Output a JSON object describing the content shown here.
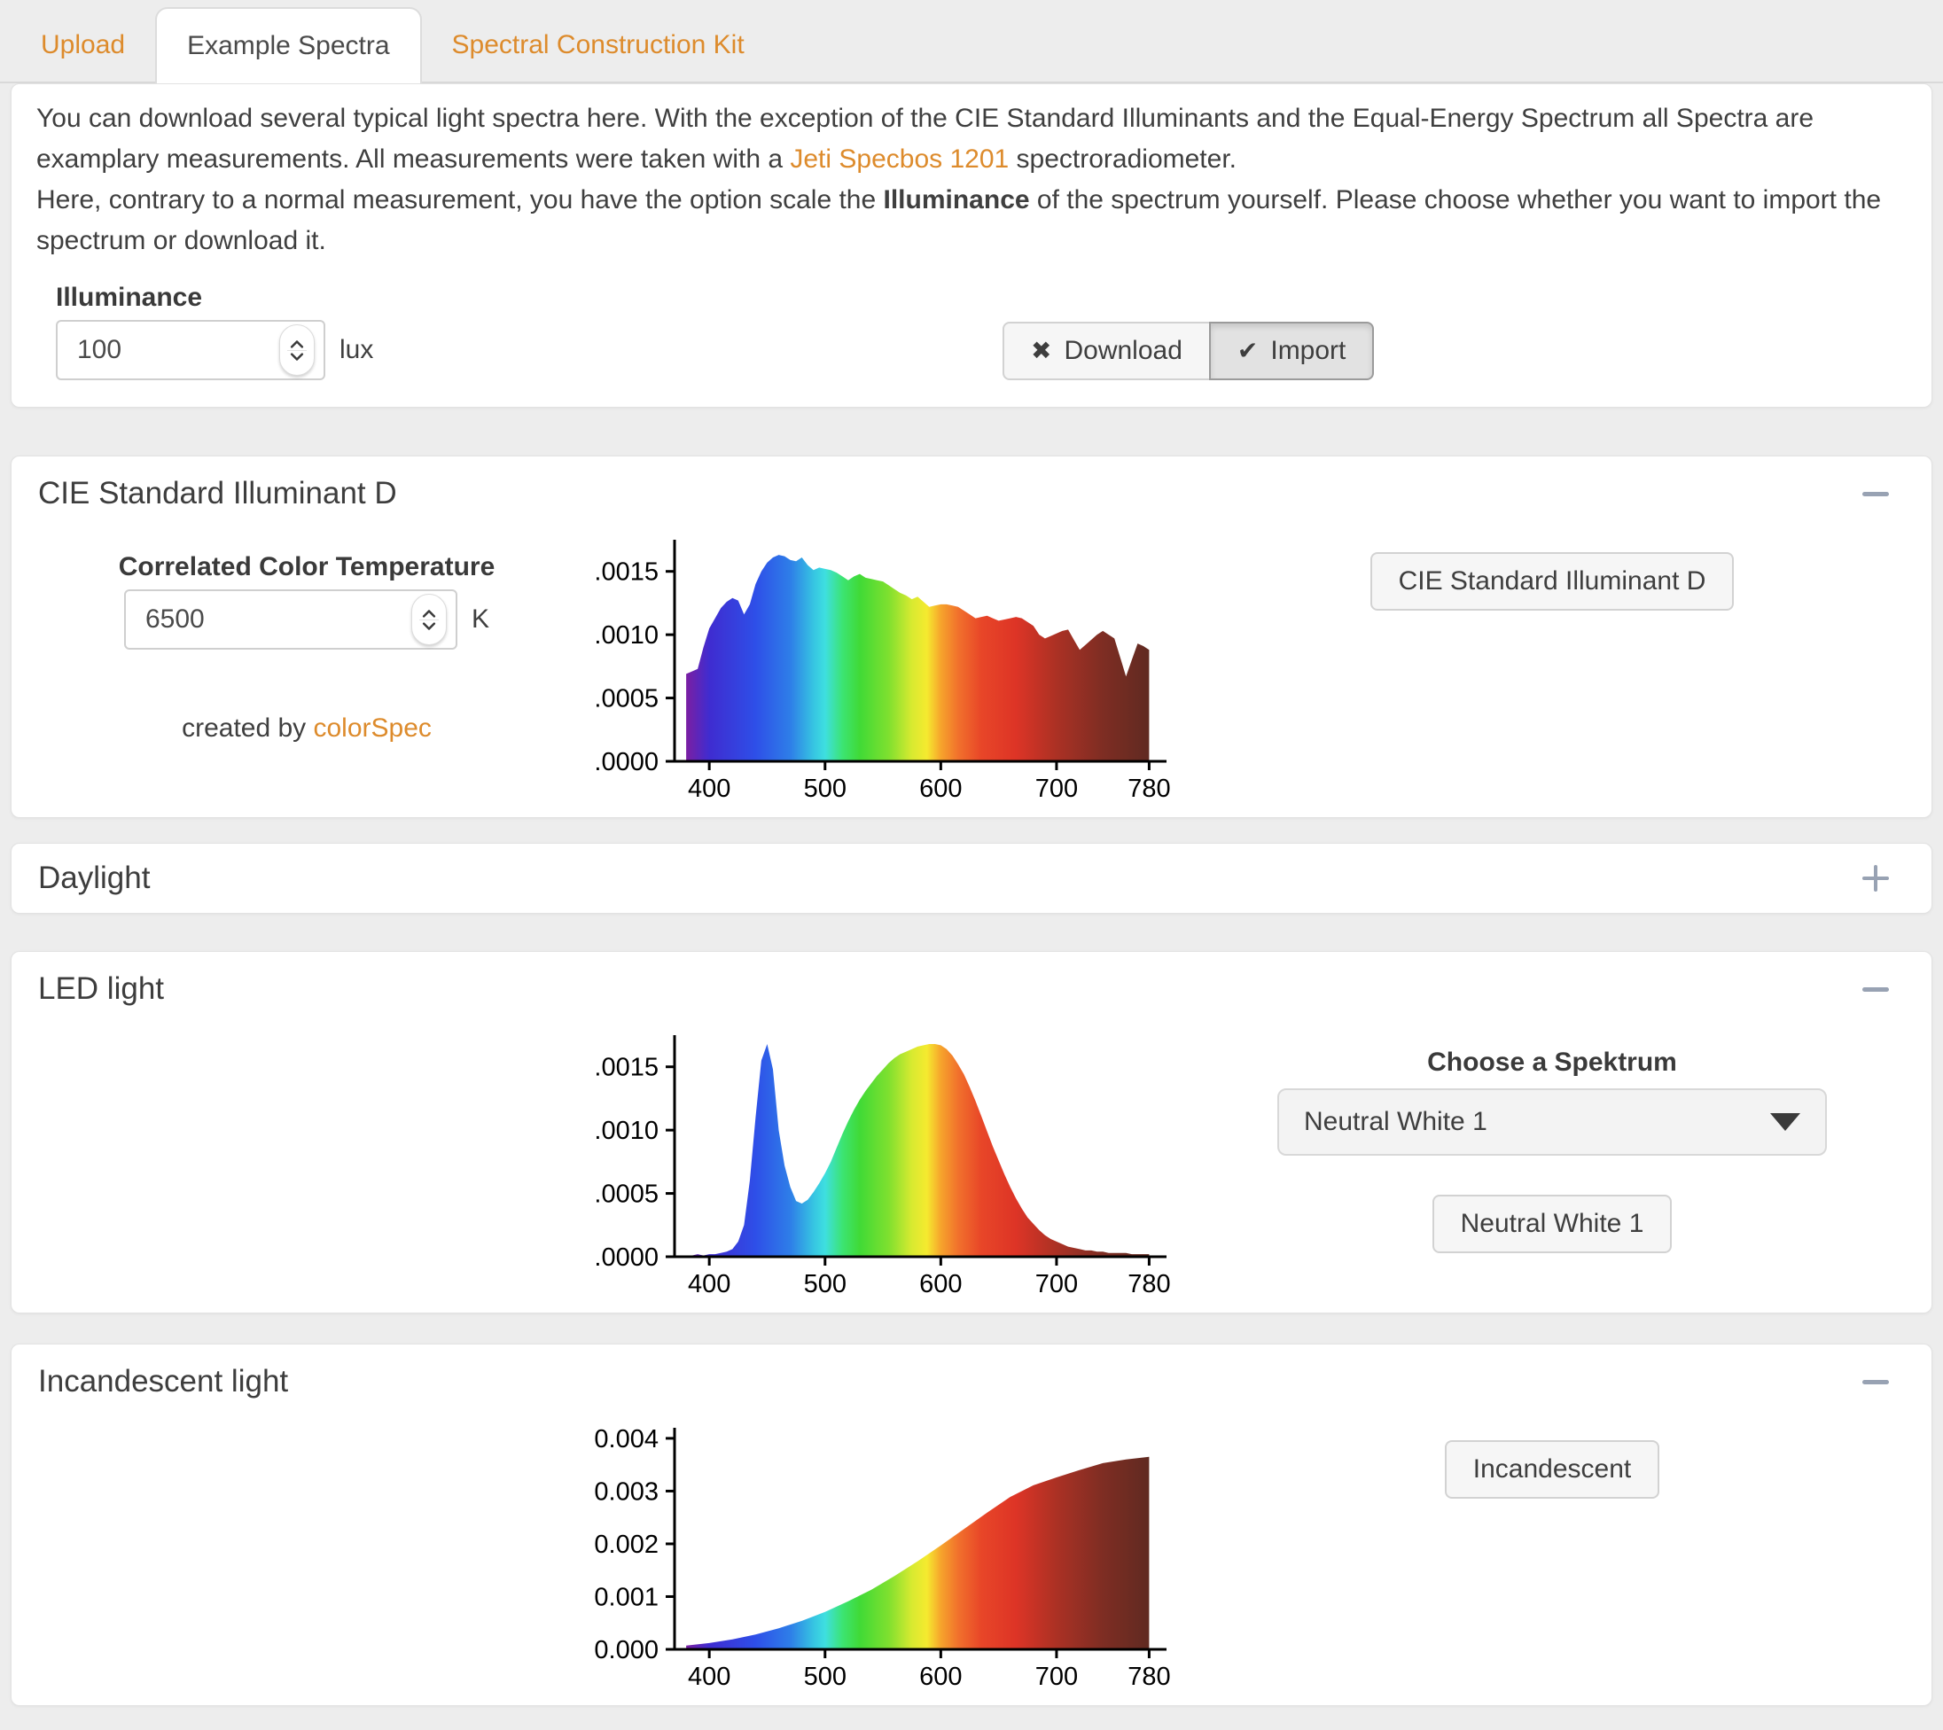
{
  "tabs": [
    {
      "label": "Upload",
      "active": false
    },
    {
      "label": "Example Spectra",
      "active": true
    },
    {
      "label": "Spectral Construction Kit",
      "active": false
    }
  ],
  "intro": {
    "p1_before": "You can download several typical light spectra here. With the exception of the CIE Standard Illuminants and the Equal-Energy Spectrum all Spectra are examplary measurements. All measurements were taken with a ",
    "p1_link": "Jeti Specbos 1201",
    "p1_after": " spectroradiometer.",
    "p2_before": "Here, contrary to a normal measurement, you have the option scale the ",
    "p2_bold": "Illuminance",
    "p2_after": " of the spectrum yourself. Please choose whether you want to import the spectrum or download it."
  },
  "illuminance": {
    "label": "Illuminance",
    "value": "100",
    "unit": "lux"
  },
  "actions": {
    "download_label": "Download",
    "download_icon": "✖",
    "import_label": "Import",
    "import_icon": "✔"
  },
  "panels": {
    "cie": {
      "title": "CIE Standard Illuminant D",
      "cct_label": "Correlated Color Temperature",
      "cct_value": "6500",
      "cct_unit": "K",
      "credit_before": "created by ",
      "credit_link": "colorSpec",
      "button_label": "CIE Standard Illuminant D"
    },
    "daylight": {
      "title": "Daylight"
    },
    "led": {
      "title": "LED light",
      "choose_label": "Choose a Spektrum",
      "select_value": "Neutral White 1",
      "button_label": "Neutral White 1"
    },
    "incandescent": {
      "title": "Incandescent light",
      "button_label": "Incandescent"
    }
  },
  "colors": {
    "accent_orange": "#dd8b2c",
    "page_bg": "#ededed",
    "panel_bg": "#ffffff",
    "icon_gray": "#98a2b3",
    "axis_black": "#000000",
    "spectral_stops": [
      {
        "wl": 380,
        "color": "#7b1fa2"
      },
      {
        "wl": 400,
        "color": "#3f2cd0"
      },
      {
        "wl": 440,
        "color": "#2e4fe8"
      },
      {
        "wl": 470,
        "color": "#2e7ee8"
      },
      {
        "wl": 490,
        "color": "#36c4e2"
      },
      {
        "wl": 500,
        "color": "#3edfe0"
      },
      {
        "wl": 515,
        "color": "#3ce473"
      },
      {
        "wl": 530,
        "color": "#40da36"
      },
      {
        "wl": 555,
        "color": "#7fe02f"
      },
      {
        "wl": 575,
        "color": "#d8ea30"
      },
      {
        "wl": 588,
        "color": "#f5ea2f"
      },
      {
        "wl": 600,
        "color": "#f6a42c"
      },
      {
        "wl": 615,
        "color": "#f1712c"
      },
      {
        "wl": 635,
        "color": "#e84628"
      },
      {
        "wl": 665,
        "color": "#dd3426"
      },
      {
        "wl": 700,
        "color": "#ab3124"
      },
      {
        "wl": 740,
        "color": "#7e2d23"
      },
      {
        "wl": 780,
        "color": "#602a21"
      }
    ]
  },
  "chart_data": [
    {
      "type": "area",
      "name": "CIE Standard Illuminant D spectrum",
      "xlabel": "",
      "ylabel": "",
      "xlim": [
        370,
        795
      ],
      "ylim": [
        0,
        0.00175
      ],
      "x_ticks": [
        400,
        500,
        600,
        700,
        780
      ],
      "x_tick_labels": [
        "400",
        "500",
        "600",
        "700",
        "780"
      ],
      "y_ticks": [
        0,
        0.0005,
        0.001,
        0.0015
      ],
      "y_tick_labels": [
        "0.0000",
        "0.0005",
        "0.0010",
        "0.0015"
      ],
      "x": [
        380,
        385,
        390,
        395,
        400,
        405,
        410,
        415,
        420,
        425,
        430,
        435,
        440,
        445,
        450,
        455,
        460,
        465,
        470,
        475,
        480,
        485,
        490,
        495,
        500,
        505,
        510,
        515,
        520,
        525,
        530,
        535,
        540,
        545,
        550,
        555,
        560,
        565,
        570,
        575,
        580,
        585,
        590,
        595,
        600,
        605,
        610,
        615,
        620,
        625,
        630,
        635,
        640,
        645,
        650,
        655,
        660,
        665,
        670,
        675,
        680,
        685,
        690,
        695,
        700,
        705,
        710,
        715,
        720,
        725,
        730,
        735,
        740,
        745,
        750,
        755,
        760,
        765,
        770,
        775,
        780
      ],
      "values": [
        0.00069,
        0.00071,
        0.00073,
        0.0009,
        0.00105,
        0.00113,
        0.00121,
        0.00126,
        0.00129,
        0.00127,
        0.00116,
        0.00124,
        0.0014,
        0.0015,
        0.00157,
        0.00161,
        0.00163,
        0.00162,
        0.00159,
        0.00158,
        0.00161,
        0.00155,
        0.00151,
        0.00153,
        0.00152,
        0.00151,
        0.00149,
        0.00146,
        0.00143,
        0.00146,
        0.00148,
        0.00145,
        0.00144,
        0.00143,
        0.00142,
        0.00139,
        0.00136,
        0.00133,
        0.00131,
        0.00128,
        0.0013,
        0.00126,
        0.00122,
        0.00123,
        0.00124,
        0.00124,
        0.00123,
        0.00122,
        0.00119,
        0.00116,
        0.00113,
        0.00114,
        0.00115,
        0.00113,
        0.00111,
        0.00112,
        0.00113,
        0.00114,
        0.00113,
        0.0011,
        0.00107,
        0.001,
        0.00097,
        0.00099,
        0.00101,
        0.00103,
        0.00104,
        0.00096,
        0.00088,
        0.00092,
        0.00096,
        0.001,
        0.00103,
        0.001,
        0.00097,
        0.00082,
        0.00067,
        0.0008,
        0.00093,
        0.00091,
        0.00088
      ]
    },
    {
      "type": "area",
      "name": "LED light spectrum (Neutral White 1)",
      "xlabel": "",
      "ylabel": "",
      "xlim": [
        370,
        795
      ],
      "ylim": [
        0,
        0.00175
      ],
      "x_ticks": [
        400,
        500,
        600,
        700,
        780
      ],
      "x_tick_labels": [
        "400",
        "500",
        "600",
        "700",
        "780"
      ],
      "y_ticks": [
        0,
        0.0005,
        0.001,
        0.0015
      ],
      "y_tick_labels": [
        "0.0000",
        "0.0005",
        "0.0010",
        "0.0015"
      ],
      "x": [
        380,
        385,
        390,
        395,
        400,
        405,
        410,
        415,
        420,
        425,
        430,
        435,
        440,
        445,
        450,
        455,
        460,
        465,
        470,
        475,
        480,
        485,
        490,
        495,
        500,
        505,
        510,
        515,
        520,
        525,
        530,
        535,
        540,
        545,
        550,
        555,
        560,
        565,
        570,
        575,
        580,
        585,
        590,
        595,
        600,
        605,
        610,
        615,
        620,
        625,
        630,
        635,
        640,
        645,
        650,
        655,
        660,
        665,
        670,
        675,
        680,
        685,
        690,
        695,
        700,
        705,
        710,
        715,
        720,
        725,
        730,
        735,
        740,
        745,
        750,
        755,
        760,
        765,
        770,
        775,
        780
      ],
      "values": [
        1e-05,
        1e-05,
        2e-05,
        1e-05,
        2e-05,
        2e-05,
        3e-05,
        4e-05,
        6e-05,
        0.00012,
        0.00025,
        0.0006,
        0.0011,
        0.00155,
        0.00168,
        0.00148,
        0.001,
        0.00072,
        0.00055,
        0.00044,
        0.00042,
        0.00045,
        0.00051,
        0.00058,
        0.00066,
        0.00075,
        0.00086,
        0.00097,
        0.00107,
        0.00116,
        0.00124,
        0.00131,
        0.00137,
        0.00143,
        0.00148,
        0.00153,
        0.00157,
        0.0016,
        0.00162,
        0.00164,
        0.00166,
        0.00167,
        0.00168,
        0.00168,
        0.00167,
        0.00164,
        0.00159,
        0.00152,
        0.00144,
        0.00134,
        0.00123,
        0.00111,
        0.00099,
        0.00087,
        0.00076,
        0.00065,
        0.00055,
        0.00046,
        0.00038,
        0.00031,
        0.00026,
        0.00021,
        0.00017,
        0.00014,
        0.00012,
        0.0001,
        8e-05,
        7e-05,
        6e-05,
        5e-05,
        5e-05,
        4e-05,
        4e-05,
        3e-05,
        3e-05,
        3e-05,
        3e-05,
        2e-05,
        2e-05,
        2e-05,
        2e-05
      ]
    },
    {
      "type": "area",
      "name": "Incandescent light spectrum",
      "xlabel": "",
      "ylabel": "",
      "xlim": [
        370,
        795
      ],
      "ylim": [
        0,
        0.0042
      ],
      "x_ticks": [
        400,
        500,
        600,
        700,
        780
      ],
      "x_tick_labels": [
        "400",
        "500",
        "600",
        "700",
        "780"
      ],
      "y_ticks": [
        0,
        0.001,
        0.002,
        0.003,
        0.004
      ],
      "y_tick_labels": [
        "0.000",
        "0.001",
        "0.002",
        "0.003",
        "0.004"
      ],
      "x": [
        380,
        400,
        420,
        440,
        460,
        480,
        500,
        520,
        540,
        560,
        580,
        600,
        620,
        640,
        660,
        680,
        700,
        720,
        740,
        760,
        780
      ],
      "values": [
        7e-05,
        0.00012,
        0.00019,
        0.00028,
        0.0004,
        0.00054,
        0.00071,
        0.00091,
        0.00113,
        0.00139,
        0.00167,
        0.00197,
        0.00228,
        0.00259,
        0.00289,
        0.00311,
        0.00326,
        0.0034,
        0.00353,
        0.0036,
        0.00365
      ]
    }
  ]
}
